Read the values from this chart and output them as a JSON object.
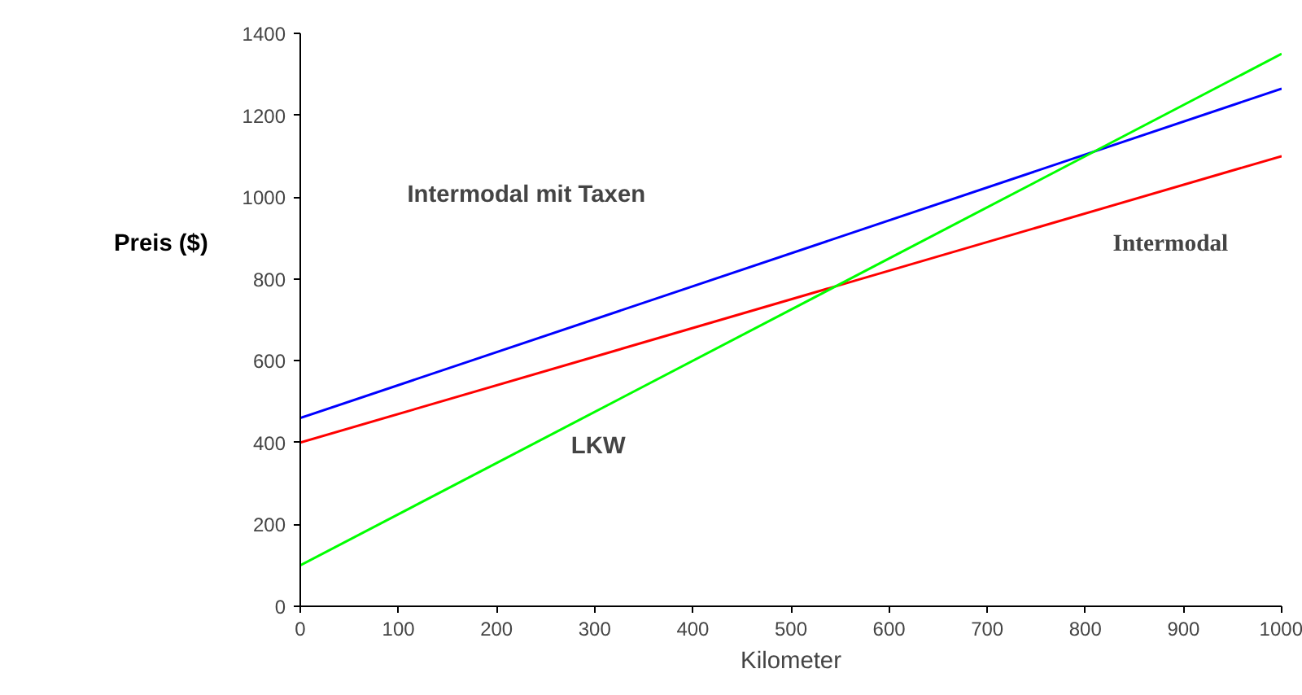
{
  "chart_data": {
    "type": "line",
    "xlabel": "Kilometer",
    "ylabel": "Preis ($)",
    "x": [
      0,
      1000
    ],
    "series": [
      {
        "color": "#0000ff",
        "values": [
          460,
          1265
        ]
      },
      {
        "color": "#ff0000",
        "values": [
          400,
          1100
        ]
      },
      {
        "color": "#00ff00",
        "values": [
          100,
          1350
        ]
      }
    ],
    "annotations": [
      "Intermodal mit Taxen",
      "Intermodal",
      "LKW"
    ],
    "xlim": [
      0,
      1000
    ],
    "ylim": [
      0,
      1400
    ],
    "xticks": [
      0,
      100,
      200,
      300,
      400,
      500,
      600,
      700,
      800,
      900,
      1000
    ],
    "yticks": [
      0,
      200,
      400,
      600,
      800,
      1000,
      1200,
      1400
    ],
    "marker": "none",
    "line_style": "solid"
  }
}
